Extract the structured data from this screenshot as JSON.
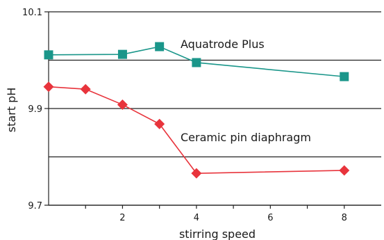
{
  "chart_data": {
    "type": "line",
    "title": "",
    "xlabel": "stirring speed",
    "ylabel": "start pH",
    "xlim": [
      0,
      9
    ],
    "ylim": [
      9.7,
      10.1
    ],
    "xticks": [
      2,
      4,
      6,
      8
    ],
    "xtick_labels": [
      "2",
      "4",
      "6",
      "8"
    ],
    "yticks": [
      9.7,
      9.9,
      10.1
    ],
    "ytick_labels": [
      "9.7",
      "9.9",
      "10.1"
    ],
    "gridlines_y": [
      9.7,
      9.8,
      9.9,
      10.0,
      10.1
    ],
    "grid": "horizontal",
    "series": [
      {
        "name": "Aquatrode Plus",
        "color": "#1a968a",
        "marker": "square",
        "points": [
          [
            0,
            10.011
          ],
          [
            2,
            10.012
          ],
          [
            3,
            10.028
          ],
          [
            4,
            9.995
          ],
          [
            8,
            9.966
          ]
        ]
      },
      {
        "name": "Ceramic pin diaphragm",
        "color": "#e8343c",
        "marker": "diamond",
        "points": [
          [
            0,
            9.945
          ],
          [
            1,
            9.94
          ],
          [
            2,
            9.908
          ],
          [
            3,
            9.868
          ],
          [
            4,
            9.766
          ],
          [
            8,
            9.772
          ]
        ]
      }
    ]
  }
}
